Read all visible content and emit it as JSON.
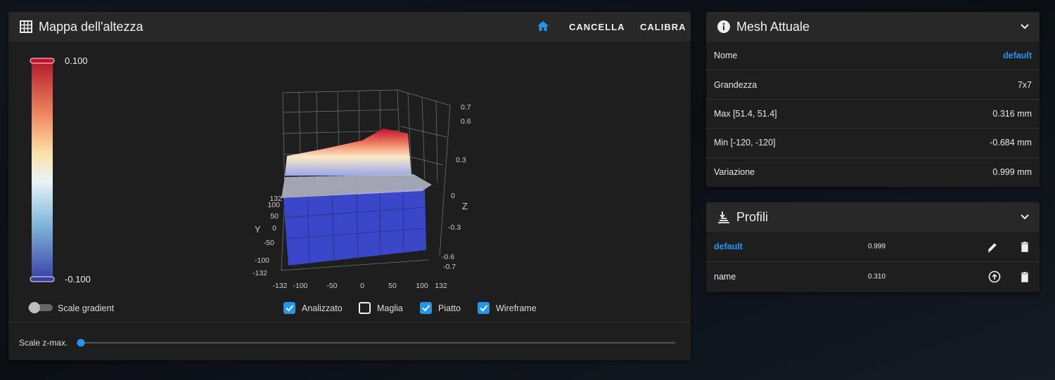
{
  "heightmap": {
    "title": "Mappa dell'altezza",
    "actions": [
      "CANCELLA",
      "CALIBRA"
    ],
    "colorbar": {
      "max": "0.100",
      "min": "-0.100"
    },
    "scale_gradient": {
      "label": "Scale gradient",
      "on": false
    },
    "options": [
      {
        "label": "Analizzato",
        "checked": true
      },
      {
        "label": "Maglia",
        "checked": false
      },
      {
        "label": "Piatto",
        "checked": true
      },
      {
        "label": "Wireframe",
        "checked": true
      }
    ],
    "slider": {
      "label": "Scale z-max."
    },
    "plot": {
      "z_ticks": [
        "0.7",
        "0.6",
        "0.3",
        "0",
        "-0.3",
        "-0.6",
        "-0.7"
      ],
      "z_label": "Z",
      "y_ticks": [
        "132",
        "100",
        "50",
        "0",
        "-50",
        "-100",
        "-132"
      ],
      "y_label": "Y",
      "x_ticks": [
        "-132",
        "-100",
        "-50",
        "0",
        "50",
        "100",
        "132"
      ]
    }
  },
  "mesh": {
    "title": "Mesh Attuale",
    "rows": [
      [
        "Nome",
        "default"
      ],
      [
        "Grandezza",
        "7x7"
      ],
      [
        "Max [51.4, 51.4]",
        "0.316 mm"
      ],
      [
        "Min [-120, -120]",
        "-0.684 mm"
      ],
      [
        "Variazione",
        "0.999 mm"
      ]
    ]
  },
  "profiles": {
    "title": "Profili",
    "rows": [
      [
        "default",
        "0.999"
      ],
      [
        "name",
        "0.310"
      ]
    ]
  }
}
